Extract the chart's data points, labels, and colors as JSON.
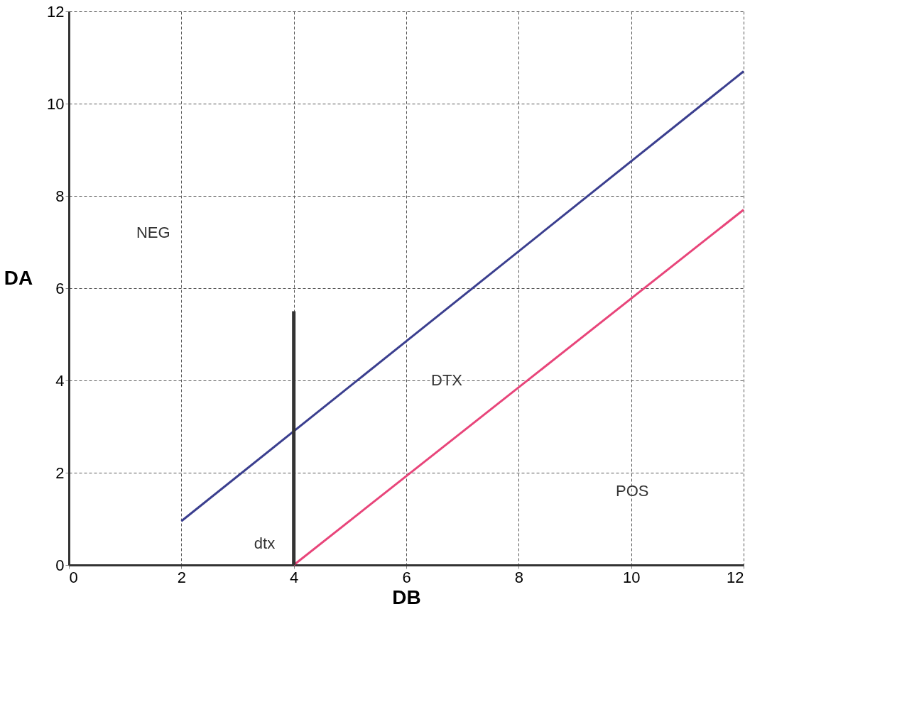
{
  "chart_data": {
    "type": "line",
    "xlabel": "DB",
    "ylabel": "DA",
    "xlim": [
      0,
      12
    ],
    "ylim": [
      0,
      12
    ],
    "xticks": [
      0,
      2,
      4,
      6,
      8,
      10,
      12
    ],
    "yticks": [
      0,
      2,
      4,
      6,
      8,
      10,
      12
    ],
    "grid": true,
    "marker": "none",
    "line_style": "solid",
    "series": [
      {
        "color": "#3b3f8f",
        "x": [
          2,
          12
        ],
        "values": [
          0.95,
          10.7
        ]
      },
      {
        "color": "#e8457a",
        "x": [
          4,
          12
        ],
        "values": [
          0,
          7.7
        ]
      },
      {
        "color": "#333333",
        "x": [
          4,
          4
        ],
        "values": [
          0,
          5.5
        ]
      }
    ],
    "annotations": [
      "NEG",
      "DTX",
      "POS",
      "dtx"
    ]
  }
}
